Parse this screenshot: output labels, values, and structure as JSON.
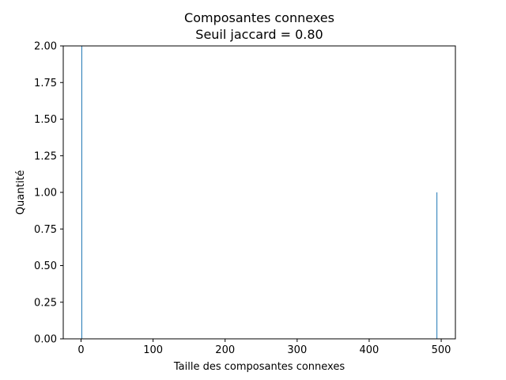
{
  "chart_data": {
    "type": "bar",
    "title": "Composantes connexes",
    "subtitle": "Seuil jaccard = 0.80",
    "xlabel": "Taille des composantes connexes",
    "ylabel": "Quantité",
    "xlim": [
      -24.7,
      519.7
    ],
    "ylim": [
      0,
      2.0
    ],
    "x_ticks": [
      0,
      100,
      200,
      300,
      400,
      500
    ],
    "y_ticks": [
      0.0,
      0.25,
      0.5,
      0.75,
      1.0,
      1.25,
      1.5,
      1.75,
      2.0
    ],
    "x_tick_labels": [
      "0",
      "100",
      "200",
      "300",
      "400",
      "500"
    ],
    "y_tick_labels": [
      "0.00",
      "0.25",
      "0.50",
      "0.75",
      "1.00",
      "1.25",
      "1.50",
      "1.75",
      "2.00"
    ],
    "bars": [
      {
        "x": 1,
        "value": 2
      },
      {
        "x": 494,
        "value": 1
      }
    ],
    "bar_width": 1,
    "bar_color": "#1f77b4",
    "grid": false
  }
}
